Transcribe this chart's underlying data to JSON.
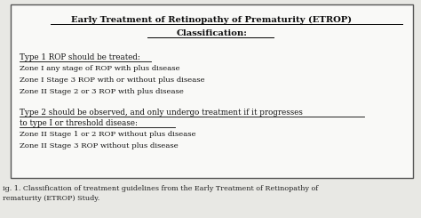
{
  "title_line1": "Early Treatment of Retinopathy of Prematurity (ETROP)",
  "title_line2": "Classification:",
  "type1_header": "Type 1 ROP should be treated:",
  "type1_items": [
    "Zone I any stage of ROP with plus disease",
    "Zone I Stage 3 ROP with or without plus disease",
    "Zone II Stage 2 or 3 ROP with plus disease"
  ],
  "type2_header_line1": "Type 2 should be observed, and only undergo treatment if it progresses",
  "type2_header_line2": "to type I or threshold disease:",
  "type2_items": [
    "Zone II Stage 1 or 2 ROP without plus disease",
    "Zone II Stage 3 ROP without plus disease"
  ],
  "caption_line1": "ig. 1. Classification of treatment guidelines from the Early Treatment of Retinopathy of",
  "caption_line2": "rematurity (ETROP) Study.",
  "bg_color": "#e8e8e4",
  "box_color": "#f9f9f7",
  "text_color": "#111111",
  "caption_color": "#222222",
  "font_size_title": 7.2,
  "font_size_header": 6.3,
  "font_size_body": 6.1,
  "font_size_caption": 5.8
}
